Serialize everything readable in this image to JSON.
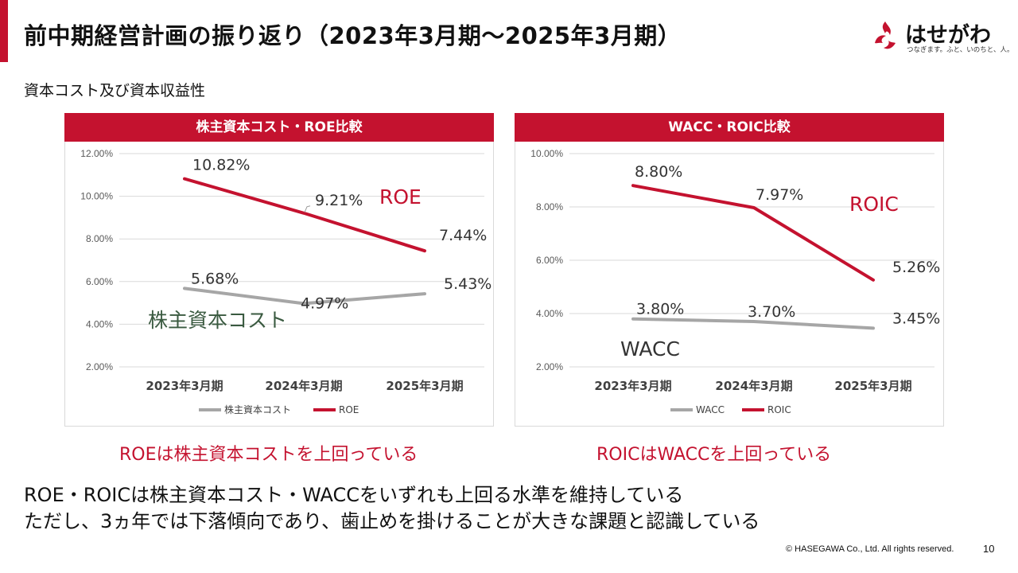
{
  "page": {
    "title": "前中期経営計画の振り返り（2023年3月期～2025年3月期）",
    "subtitle": "資本コスト及び資本収益性",
    "caption_left": "ROEは株主資本コストを上回っている",
    "caption_right": "ROICはWACCを上回っている",
    "conclusion_line1": "ROE・ROICは株主資本コスト・WACCをいずれも上回る水準を維持している",
    "conclusion_line2": "ただし、3ヵ年では下落傾向であり、歯止めを掛けることが大きな課題と認識している",
    "copyright": "© HASEGAWA Co., Ltd. All rights reserved.",
    "page_number": "10",
    "accent_color": "#c4122f"
  },
  "logo": {
    "name": "はせがわ",
    "tagline": "つなぎます。ふと、いのちと、人。",
    "icon": "hasegawa-flame-logo-icon"
  },
  "chart_data": [
    {
      "type": "line",
      "title": "株主資本コスト・ROE比較",
      "categories": [
        "2023年3月期",
        "2024年3月期",
        "2025年3月期"
      ],
      "ylim": [
        2,
        12
      ],
      "yticks": [
        "2.00%",
        "4.00%",
        "6.00%",
        "8.00%",
        "10.00%",
        "12.00%"
      ],
      "grid": true,
      "legend": "bottom",
      "series": [
        {
          "name": "株主資本コスト",
          "values": [
            5.68,
            4.97,
            5.43
          ],
          "labels": [
            "5.68%",
            "4.97%",
            "5.43%"
          ],
          "color": "#a6a6a6",
          "annotation": "株主資本コスト",
          "annotation_color": "#3a5a40"
        },
        {
          "name": "ROE",
          "values": [
            10.82,
            9.21,
            7.44
          ],
          "labels": [
            "10.82%",
            "9.21%",
            "7.44%"
          ],
          "color": "#c4122f",
          "annotation": "ROE",
          "annotation_color": "#c4122f"
        }
      ]
    },
    {
      "type": "line",
      "title": "WACC・ROIC比較",
      "categories": [
        "2023年3月期",
        "2024年3月期",
        "2025年3月期"
      ],
      "ylim": [
        2,
        10
      ],
      "yticks": [
        "2.00%",
        "4.00%",
        "6.00%",
        "8.00%",
        "10.00%"
      ],
      "grid": true,
      "legend": "bottom",
      "series": [
        {
          "name": "WACC",
          "values": [
            3.8,
            3.7,
            3.45
          ],
          "labels": [
            "3.80%",
            "3.70%",
            "3.45%"
          ],
          "color": "#a6a6a6",
          "annotation": "WACC",
          "annotation_color": "#333333"
        },
        {
          "name": "ROIC",
          "values": [
            8.8,
            7.97,
            5.26
          ],
          "labels": [
            "8.80%",
            "7.97%",
            "5.26%"
          ],
          "color": "#c4122f",
          "annotation": "ROIC",
          "annotation_color": "#c4122f"
        }
      ]
    }
  ]
}
